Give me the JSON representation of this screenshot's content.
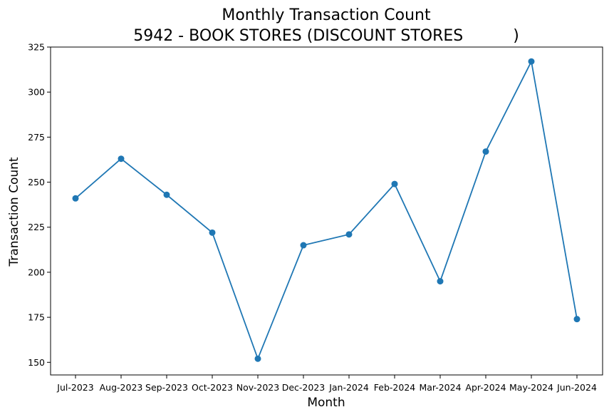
{
  "chart_data": {
    "type": "line",
    "title": "Monthly Transaction Count",
    "subtitle": "5942 - BOOK STORES (DISCOUNT STORES          )",
    "xlabel": "Month",
    "ylabel": "Transaction Count",
    "categories": [
      "Jul-2023",
      "Aug-2023",
      "Sep-2023",
      "Oct-2023",
      "Nov-2023",
      "Dec-2023",
      "Jan-2024",
      "Feb-2024",
      "Mar-2024",
      "Apr-2024",
      "May-2024",
      "Jun-2024"
    ],
    "values": [
      241,
      263,
      243,
      222,
      152,
      215,
      221,
      249,
      195,
      267,
      317,
      174
    ],
    "ylim": [
      143,
      325
    ],
    "yticks": [
      150,
      175,
      200,
      225,
      250,
      275,
      300,
      325
    ],
    "grid": false,
    "line_color": "#1f77b4",
    "marker_color": "#1f77b4"
  }
}
